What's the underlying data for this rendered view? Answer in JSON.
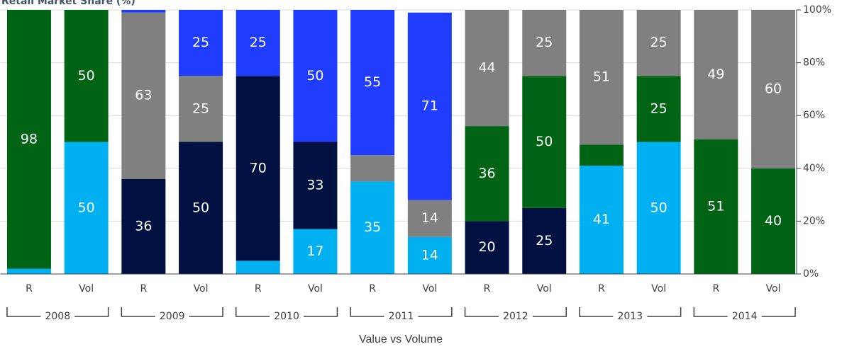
{
  "chart_data": {
    "type": "stacked_bar",
    "title": "Retail Market Share (%)",
    "x_label": "Value vs Volume",
    "categories": [
      "R",
      "Vol",
      "R",
      "Vol",
      "R",
      "Vol",
      "R",
      "Vol",
      "R",
      "Vol",
      "R",
      "Vol",
      "R",
      "Vol"
    ],
    "groups": [
      "2008",
      "2009",
      "2010",
      "2011",
      "2012",
      "2013",
      "2014"
    ],
    "series": [
      {
        "color": "#00b0f0",
        "values": [
          2,
          50,
          null,
          null,
          5,
          17,
          35,
          14,
          null,
          null,
          41,
          50,
          null,
          null
        ]
      },
      {
        "color": "#001141",
        "values": [
          null,
          null,
          36,
          50,
          70,
          33,
          null,
          null,
          20,
          25,
          null,
          null,
          null,
          null
        ]
      },
      {
        "color": "#006414",
        "values": [
          98,
          50,
          null,
          null,
          null,
          null,
          null,
          null,
          36,
          50,
          8,
          25,
          51,
          40
        ]
      },
      {
        "color": "#808080",
        "values": [
          null,
          null,
          63,
          25,
          null,
          null,
          10,
          14,
          44,
          25,
          51,
          25,
          49,
          60
        ]
      },
      {
        "color": "#1f3cff",
        "values": [
          null,
          null,
          1,
          25,
          25,
          50,
          55,
          71,
          null,
          null,
          null,
          null,
          null,
          null
        ]
      }
    ],
    "ylim": [
      0,
      100
    ],
    "yticks": [
      {
        "value": 0,
        "label": "0%"
      },
      {
        "value": 20,
        "label": "20%"
      },
      {
        "value": 40,
        "label": "40%"
      },
      {
        "value": 60,
        "label": "60%"
      },
      {
        "value": 80,
        "label": "80%"
      },
      {
        "value": 100,
        "label": "100%"
      }
    ],
    "grid": true
  }
}
